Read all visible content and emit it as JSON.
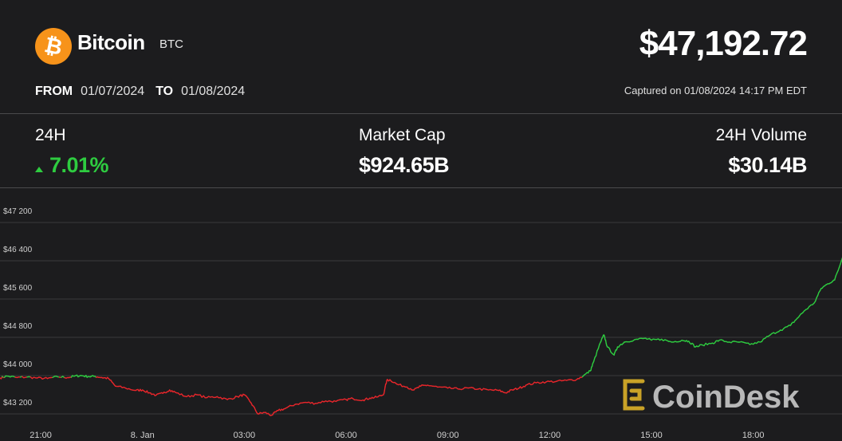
{
  "coin": {
    "name": "Bitcoin",
    "ticker": "BTC",
    "logo_icon": "bitcoin-icon",
    "logo_color": "#f7931a"
  },
  "price": "$47,192.72",
  "range": {
    "from_label": "FROM",
    "from": "01/07/2024",
    "to_label": "TO",
    "to": "01/08/2024"
  },
  "captured": "Captured on 01/08/2024 14:17 PM EDT",
  "stats": [
    {
      "label": "24H",
      "value": "7.01%",
      "direction": "up"
    },
    {
      "label": "Market Cap",
      "value": "$924.65B"
    },
    {
      "label": "24H Volume",
      "value": "$30.14B"
    }
  ],
  "watermark": "CoinDesk",
  "colors": {
    "up": "#2ecc40",
    "down": "#e8262b",
    "background": "#1c1c1e"
  },
  "chart_data": {
    "type": "line",
    "title": "",
    "xlabel": "",
    "ylabel": "",
    "x_ticks": [
      "21:00",
      "8. Jan",
      "03:00",
      "06:00",
      "09:00",
      "12:00",
      "15:00",
      "18:00"
    ],
    "y_ticks": [
      "$43 200",
      "$44 000",
      "$44 800",
      "$45 600",
      "$46 400",
      "$47 200"
    ],
    "ylim": [
      43000,
      47450
    ],
    "xlim_hours": [
      19.8,
      43.3
    ],
    "grid": "horizontal",
    "baseline": 43970,
    "series": [
      {
        "points": [
          [
            19.8,
            43950
          ],
          [
            20.0,
            43990
          ],
          [
            20.3,
            43960
          ],
          [
            20.6,
            43970
          ],
          [
            20.9,
            43950
          ],
          [
            21.2,
            43940
          ],
          [
            21.5,
            43975
          ],
          [
            21.8,
            43960
          ],
          [
            22.0,
            43990
          ],
          [
            22.2,
            44000
          ],
          [
            22.4,
            43980
          ],
          [
            22.6,
            43985
          ],
          [
            22.8,
            43960
          ],
          [
            23.0,
            43940
          ],
          [
            23.2,
            43780
          ],
          [
            23.5,
            43740
          ],
          [
            23.8,
            43690
          ],
          [
            24.0,
            43700
          ],
          [
            24.2,
            43640
          ],
          [
            24.4,
            43590
          ],
          [
            24.6,
            43630
          ],
          [
            24.8,
            43700
          ],
          [
            25.0,
            43640
          ],
          [
            25.3,
            43560
          ],
          [
            25.6,
            43600
          ],
          [
            25.9,
            43540
          ],
          [
            26.2,
            43560
          ],
          [
            26.5,
            43500
          ],
          [
            26.8,
            43560
          ],
          [
            27.0,
            43600
          ],
          [
            27.2,
            43430
          ],
          [
            27.4,
            43200
          ],
          [
            27.6,
            43230
          ],
          [
            27.8,
            43170
          ],
          [
            28.0,
            43270
          ],
          [
            28.2,
            43310
          ],
          [
            28.5,
            43400
          ],
          [
            28.8,
            43440
          ],
          [
            29.1,
            43420
          ],
          [
            29.4,
            43470
          ],
          [
            29.7,
            43460
          ],
          [
            30.0,
            43500
          ],
          [
            30.2,
            43520
          ],
          [
            30.5,
            43490
          ],
          [
            30.7,
            43530
          ],
          [
            30.9,
            43550
          ],
          [
            31.1,
            43600
          ],
          [
            31.2,
            43900
          ],
          [
            31.3,
            43910
          ],
          [
            31.5,
            43820
          ],
          [
            31.8,
            43760
          ],
          [
            32.0,
            43700
          ],
          [
            32.2,
            43780
          ],
          [
            32.4,
            43800
          ],
          [
            32.7,
            43760
          ],
          [
            33.0,
            43740
          ],
          [
            33.3,
            43720
          ],
          [
            33.6,
            43740
          ],
          [
            33.9,
            43720
          ],
          [
            34.2,
            43700
          ],
          [
            34.5,
            43690
          ],
          [
            34.7,
            43640
          ],
          [
            34.9,
            43700
          ],
          [
            35.1,
            43740
          ],
          [
            35.3,
            43800
          ],
          [
            35.6,
            43850
          ],
          [
            35.9,
            43870
          ],
          [
            36.2,
            43880
          ],
          [
            36.5,
            43900
          ],
          [
            36.8,
            43920
          ],
          [
            37.0,
            44000
          ],
          [
            37.2,
            44100
          ],
          [
            37.3,
            44300
          ],
          [
            37.5,
            44700
          ],
          [
            37.6,
            44850
          ],
          [
            37.7,
            44600
          ],
          [
            37.9,
            44430
          ],
          [
            38.0,
            44600
          ],
          [
            38.2,
            44700
          ],
          [
            38.5,
            44750
          ],
          [
            38.8,
            44780
          ],
          [
            39.0,
            44740
          ],
          [
            39.3,
            44760
          ],
          [
            39.6,
            44700
          ],
          [
            39.9,
            44740
          ],
          [
            40.1,
            44720
          ],
          [
            40.3,
            44600
          ],
          [
            40.5,
            44640
          ],
          [
            40.8,
            44680
          ],
          [
            41.0,
            44740
          ],
          [
            41.3,
            44700
          ],
          [
            41.6,
            44700
          ],
          [
            41.9,
            44650
          ],
          [
            42.2,
            44700
          ],
          [
            42.5,
            44850
          ],
          [
            42.8,
            44950
          ],
          [
            43.1,
            45050
          ],
          [
            43.3,
            45200
          ],
          [
            43.5,
            45350
          ],
          [
            43.8,
            45520
          ],
          [
            44.0,
            45820
          ],
          [
            44.2,
            45920
          ],
          [
            44.4,
            46000
          ],
          [
            44.6,
            46400
          ],
          [
            44.8,
            46950
          ],
          [
            45.0,
            47100
          ],
          [
            45.2,
            47200
          ]
        ]
      }
    ]
  }
}
